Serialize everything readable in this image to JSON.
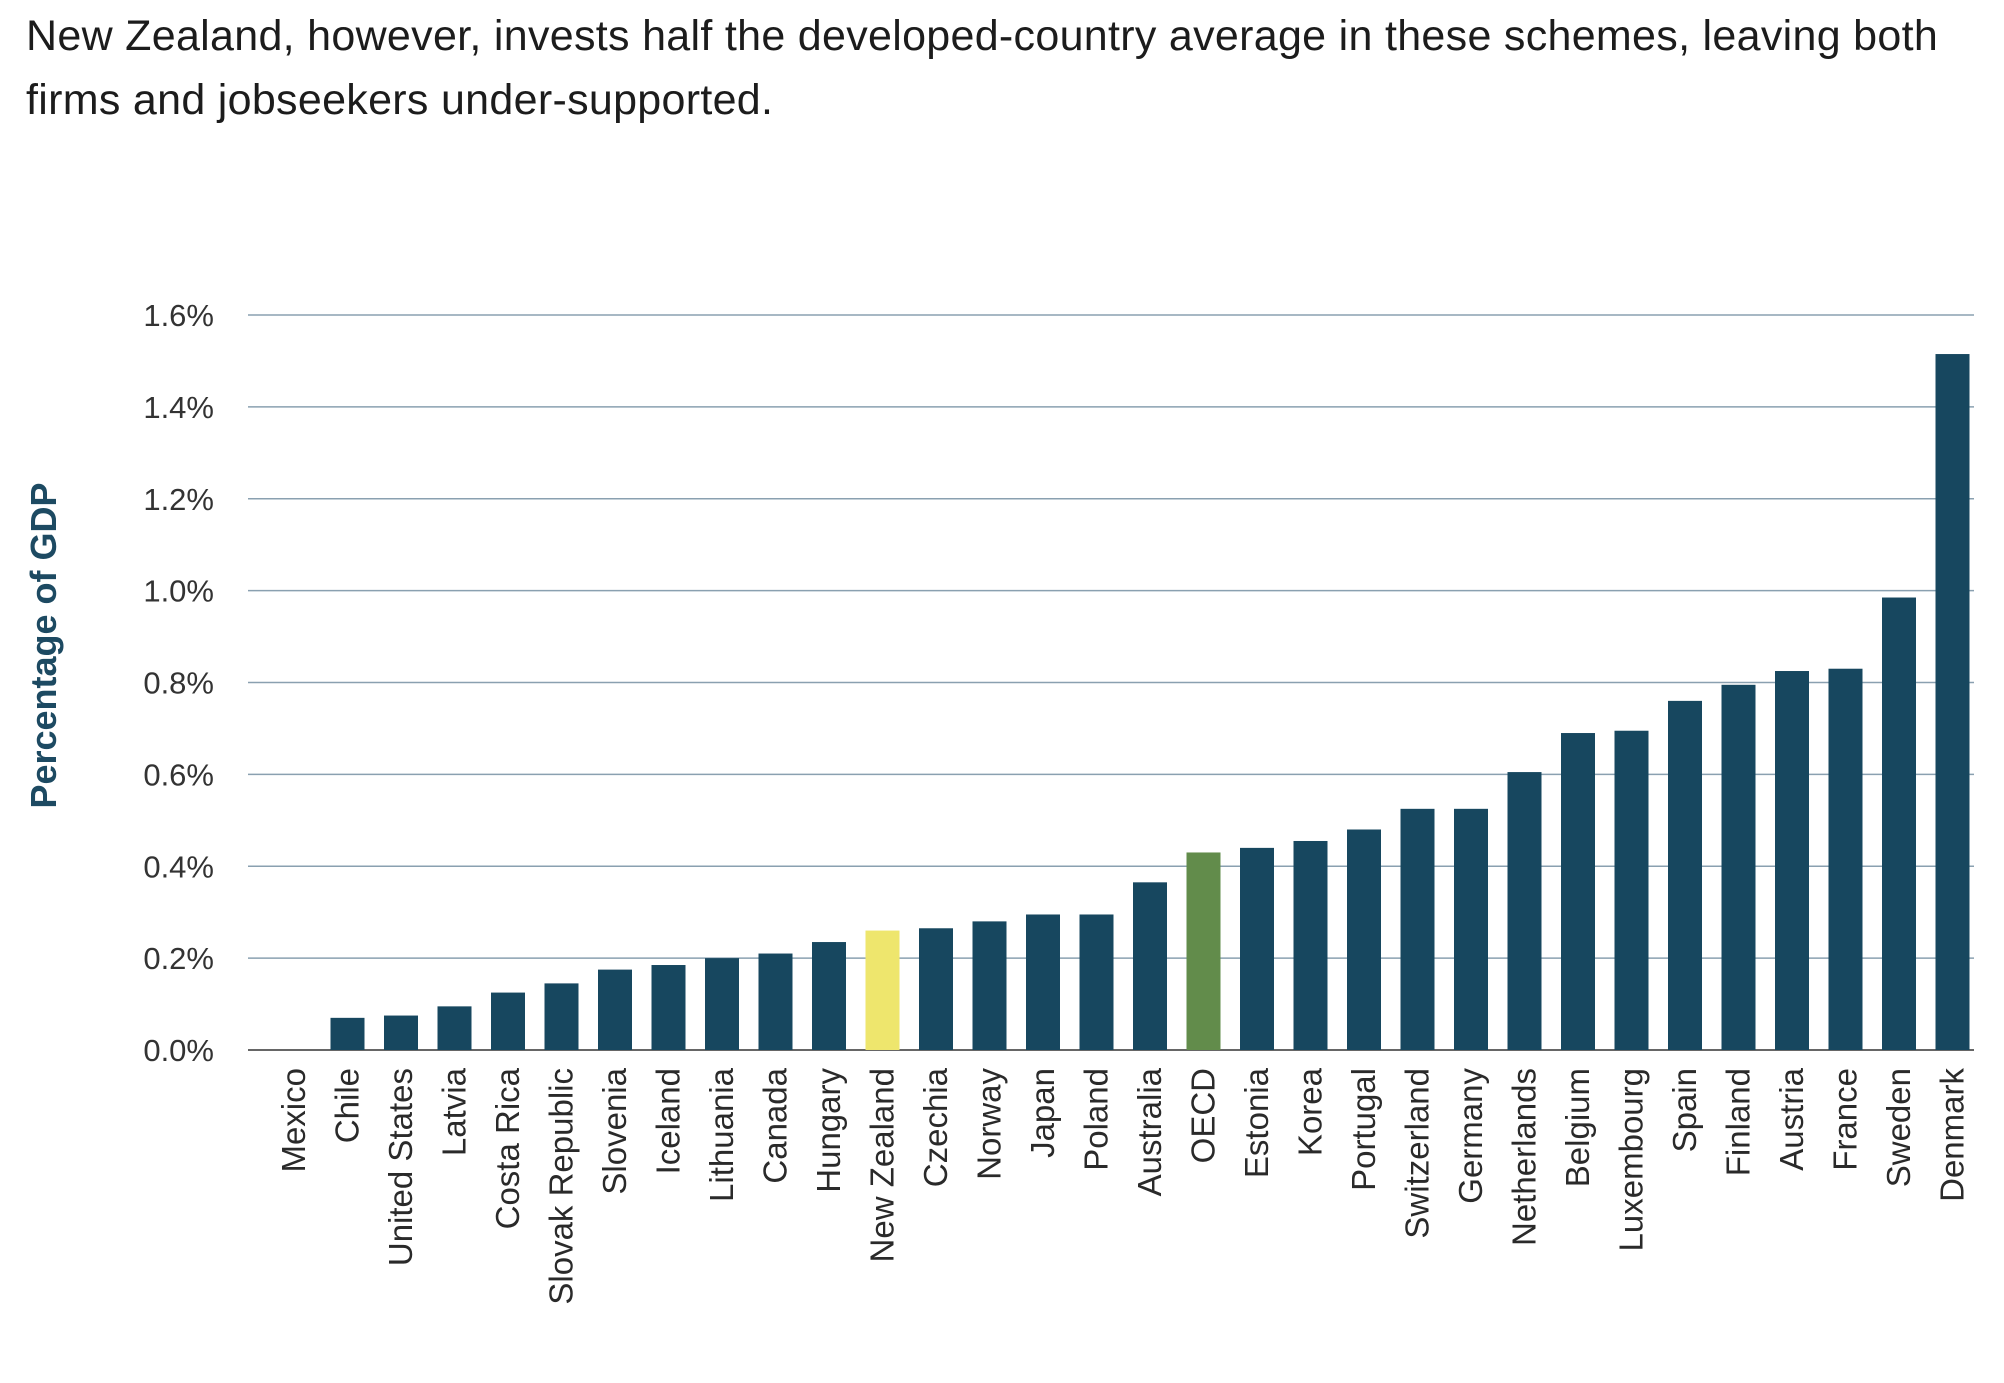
{
  "headline": "New Zealand, however, invests half the developed-country average in these schemes, leaving both firms and jobseekers under-supported.",
  "chart_data": {
    "type": "bar",
    "title": "",
    "xlabel": "",
    "ylabel": "Percentage of GDP",
    "ylim": [
      0,
      1.6
    ],
    "yticks": [
      0.0,
      0.2,
      0.4,
      0.6,
      0.8,
      1.0,
      1.2,
      1.4,
      1.6
    ],
    "ytick_labels": [
      "0.0%",
      "0.2%",
      "0.4%",
      "0.6%",
      "0.8%",
      "1.0%",
      "1.2%",
      "1.4%",
      "1.6%"
    ],
    "grid": "horizontal",
    "legend": "none",
    "categories": [
      "Mexico",
      "Chile",
      "United States",
      "Latvia",
      "Costa Rica",
      "Slovak Republic",
      "Slovenia",
      "Iceland",
      "Lithuania",
      "Canada",
      "Hungary",
      "New Zealand",
      "Czechia",
      "Norway",
      "Japan",
      "Poland",
      "Australia",
      "OECD",
      "Estonia",
      "Korea",
      "Portugal",
      "Switzerland",
      "Germany",
      "Netherlands",
      "Belgium",
      "Luxembourg",
      "Spain",
      "Finland",
      "Austria",
      "France",
      "Sweden",
      "Denmark"
    ],
    "values": [
      0.0,
      0.07,
      0.075,
      0.095,
      0.125,
      0.145,
      0.175,
      0.185,
      0.2,
      0.21,
      0.235,
      0.26,
      0.265,
      0.28,
      0.295,
      0.295,
      0.365,
      0.43,
      0.44,
      0.455,
      0.48,
      0.525,
      0.525,
      0.605,
      0.69,
      0.695,
      0.76,
      0.795,
      0.825,
      0.83,
      0.985,
      1.515
    ],
    "colors": {
      "default": "#17475f",
      "New Zealand": "#eee66d",
      "OECD": "#628c4b",
      "grid": "#8aa0b0",
      "axis": "#666666"
    }
  }
}
